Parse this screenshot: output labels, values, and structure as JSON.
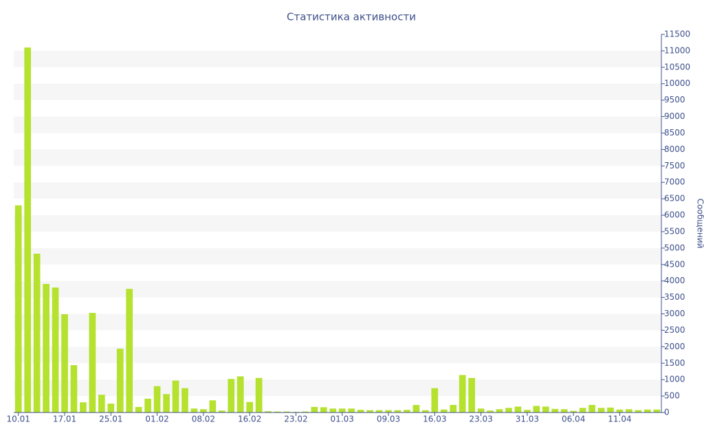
{
  "chart_data": {
    "type": "bar",
    "title": "Статистика активности",
    "y_axis_label": "Сообщений",
    "categories": [
      "10.01",
      null,
      null,
      null,
      null,
      "17.01",
      null,
      null,
      null,
      null,
      "25.01",
      null,
      null,
      null,
      null,
      "01.02",
      null,
      null,
      null,
      null,
      "08.02",
      null,
      null,
      null,
      null,
      "16.02",
      null,
      null,
      null,
      null,
      "23.02",
      null,
      null,
      null,
      null,
      "01.03",
      null,
      null,
      null,
      null,
      "09.03",
      null,
      null,
      null,
      null,
      "16.03",
      null,
      null,
      null,
      null,
      "23.03",
      null,
      null,
      null,
      null,
      "31.03",
      null,
      null,
      null,
      null,
      "06.04",
      null,
      null,
      null,
      null,
      "11.04",
      null,
      null,
      null,
      null
    ],
    "values": [
      6300,
      11100,
      4830,
      3910,
      3800,
      2990,
      1440,
      310,
      3030,
      540,
      270,
      1940,
      3760,
      170,
      420,
      800,
      560,
      970,
      740,
      120,
      100,
      370,
      60,
      1020,
      1100,
      320,
      1050,
      40,
      30,
      30,
      20,
      30,
      170,
      160,
      120,
      120,
      120,
      80,
      70,
      70,
      70,
      70,
      80,
      230,
      70,
      740,
      90,
      230,
      1140,
      1050,
      120,
      60,
      100,
      140,
      180,
      80,
      200,
      180,
      110,
      100,
      50,
      140,
      230,
      140,
      150,
      90,
      100,
      70,
      90,
      90
    ],
    "color": "#b5e12f",
    "ylim": [
      0,
      11500
    ],
    "yticks": [
      0,
      500,
      1000,
      1500,
      2000,
      2500,
      3000,
      3500,
      4000,
      4500,
      5000,
      5500,
      6000,
      6500,
      7000,
      7500,
      8000,
      8500,
      9000,
      9500,
      10000,
      10500,
      11000,
      11500
    ],
    "grid": true
  }
}
